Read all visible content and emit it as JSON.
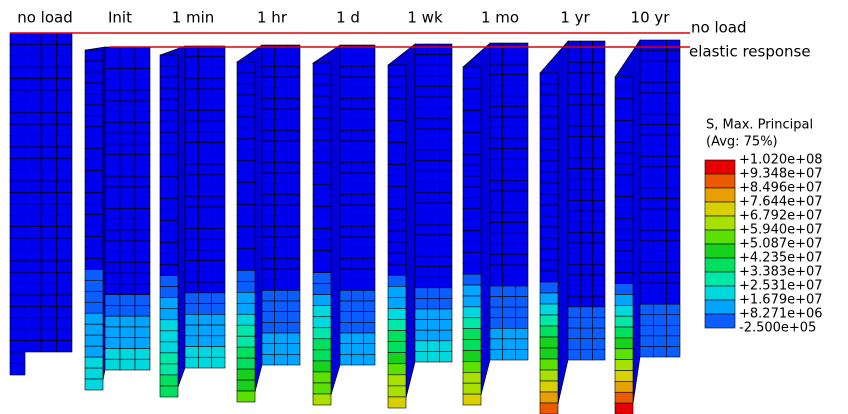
{
  "columns": [
    "no load",
    "Init",
    "1 min",
    "1 hr",
    "1 d",
    "1 wk",
    "1 mo",
    "1 yr",
    "10 yr"
  ],
  "reference_lines": {
    "top": "no load",
    "second": "elastic response"
  },
  "legend": {
    "title": "S, Max. Principal",
    "subtitle": "(Avg: 75%)",
    "labels": [
      "+1.020e+08",
      "+9.348e+07",
      "+8.496e+07",
      "+7.644e+07",
      "+6.792e+07",
      "+5.940e+07",
      "+5.087e+07",
      "+4.235e+07",
      "+3.383e+07",
      "+2.531e+07",
      "+1.679e+07",
      "+8.271e+06",
      "-2.500e+05"
    ]
  }
}
